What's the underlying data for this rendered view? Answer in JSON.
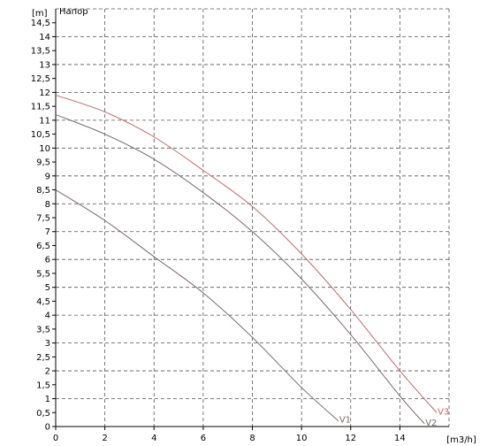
{
  "chart_data": {
    "type": "line",
    "title": "Напор",
    "xlabel": "[m3/h]",
    "ylabel": "[m]",
    "xlim": [
      0,
      16
    ],
    "ylim": [
      0,
      15
    ],
    "grid": true,
    "x_ticks": [
      {
        "value": 0,
        "label": "0"
      },
      {
        "value": 2,
        "label": "2"
      },
      {
        "value": 4,
        "label": "4"
      },
      {
        "value": 6,
        "label": "6"
      },
      {
        "value": 8,
        "label": "8"
      },
      {
        "value": 10,
        "label": "10"
      },
      {
        "value": 12,
        "label": "12"
      },
      {
        "value": 14,
        "label": "14"
      }
    ],
    "y_ticks": [
      {
        "value": 0,
        "label": "0"
      },
      {
        "value": 0.5,
        "label": "0,5"
      },
      {
        "value": 1,
        "label": "1"
      },
      {
        "value": 1.5,
        "label": "1,5"
      },
      {
        "value": 2,
        "label": "2"
      },
      {
        "value": 2.5,
        "label": "2,5"
      },
      {
        "value": 3,
        "label": "3"
      },
      {
        "value": 3.5,
        "label": "3,5"
      },
      {
        "value": 4,
        "label": "4"
      },
      {
        "value": 4.5,
        "label": "4,5"
      },
      {
        "value": 5,
        "label": "5"
      },
      {
        "value": 5.5,
        "label": "5,5"
      },
      {
        "value": 6,
        "label": "6"
      },
      {
        "value": 6.5,
        "label": "6,5"
      },
      {
        "value": 7,
        "label": "7"
      },
      {
        "value": 7.5,
        "label": "7,5"
      },
      {
        "value": 8,
        "label": "8"
      },
      {
        "value": 8.5,
        "label": "8,5"
      },
      {
        "value": 9,
        "label": "9"
      },
      {
        "value": 9.5,
        "label": "9,5"
      },
      {
        "value": 10,
        "label": "10"
      },
      {
        "value": 10.5,
        "label": "10,5"
      },
      {
        "value": 11,
        "label": "11"
      },
      {
        "value": 11.5,
        "label": "11,5"
      },
      {
        "value": 12,
        "label": "12"
      },
      {
        "value": 12.5,
        "label": "12,5"
      },
      {
        "value": 13,
        "label": "13"
      },
      {
        "value": 13.5,
        "label": "13,5"
      },
      {
        "value": 14,
        "label": "14"
      },
      {
        "value": 14.5,
        "label": "14,5"
      }
    ],
    "series": [
      {
        "name": "V1",
        "color": "#7a6a6a",
        "x": [
          0,
          2,
          4,
          6,
          8,
          10,
          11.5
        ],
        "y": [
          8.5,
          7.4,
          6.1,
          4.8,
          3.2,
          1.4,
          0.2
        ]
      },
      {
        "name": "V2",
        "color": "#7a6a6a",
        "x": [
          0,
          2,
          4,
          6,
          8,
          10,
          12,
          14,
          15
        ],
        "y": [
          11.2,
          10.5,
          9.6,
          8.4,
          7.0,
          5.3,
          3.3,
          1.1,
          0.1
        ]
      },
      {
        "name": "V3",
        "color": "#c06a6a",
        "x": [
          0,
          2,
          4,
          6,
          8,
          10,
          12,
          14,
          15.5
        ],
        "y": [
          11.9,
          11.3,
          10.4,
          9.2,
          7.9,
          6.2,
          4.2,
          2.0,
          0.5
        ]
      }
    ]
  }
}
